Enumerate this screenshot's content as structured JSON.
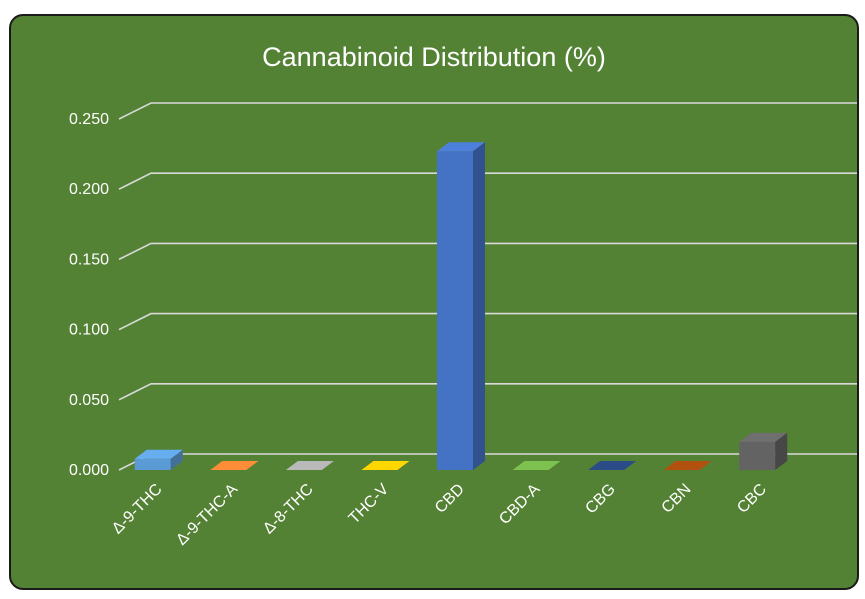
{
  "chart_data": {
    "type": "bar",
    "title": "Cannabinoid Distribution (%)",
    "categories": [
      "Δ-9-THC",
      "Δ-9-THC-A",
      "Δ-8-THC",
      "THC-V",
      "CBD",
      "CBD-A",
      "CBG",
      "CBN",
      "CBC"
    ],
    "values": [
      0.008,
      0.0,
      0.0,
      0.0,
      0.227,
      0.0,
      0.0,
      0.0,
      0.02
    ],
    "bar_colors": [
      "#5B9BD5",
      "#ED7D31",
      "#A5A5A5",
      "#FFC000",
      "#4472C4",
      "#70AD47",
      "#264478",
      "#9E480E",
      "#636363"
    ],
    "y_ticks": [
      "0.000",
      "0.050",
      "0.100",
      "0.150",
      "0.200",
      "0.250"
    ],
    "ylim": [
      0,
      0.25
    ],
    "xlabel": "",
    "ylabel": "",
    "grid": true,
    "legend": "none",
    "background": "#548235"
  }
}
